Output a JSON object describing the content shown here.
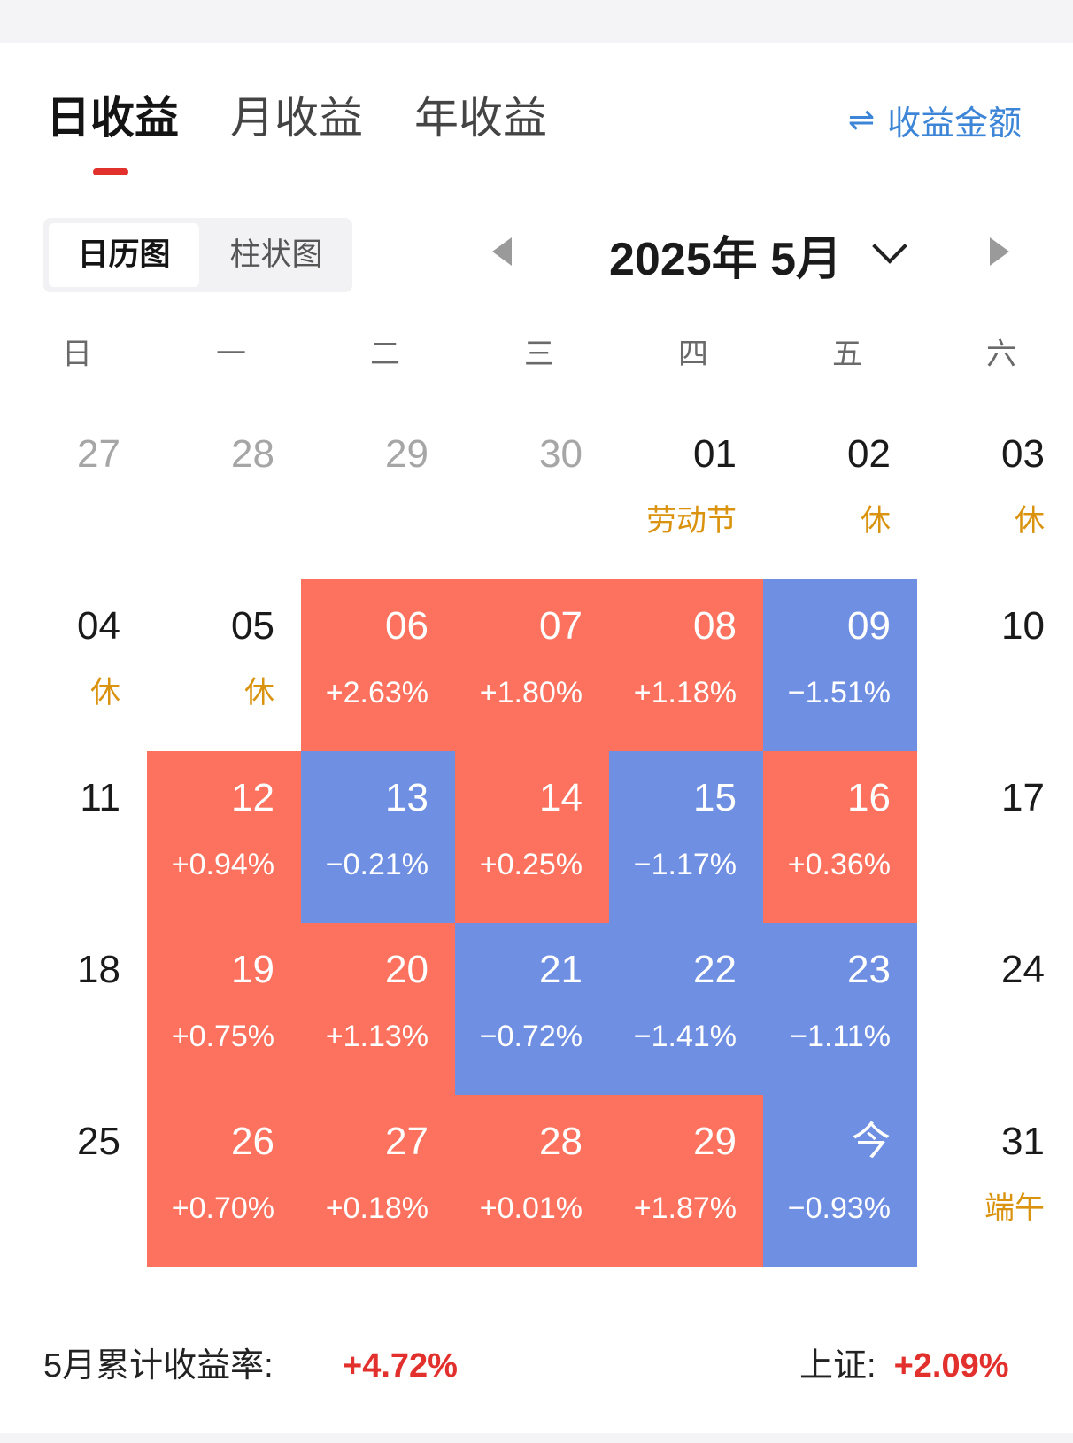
{
  "tabs": [
    {
      "label": "日收益",
      "active": true
    },
    {
      "label": "月收益",
      "active": false
    },
    {
      "label": "年收益",
      "active": false
    }
  ],
  "toggle": {
    "icon": "swap-arrows-icon",
    "label": "收益金额"
  },
  "view_toggle": {
    "active": "日历图",
    "inactive": "柱状图"
  },
  "month_nav": {
    "label": "2025年 5月"
  },
  "weekdays": [
    "日",
    "一",
    "二",
    "三",
    "四",
    "五",
    "六"
  ],
  "colors": {
    "up": "#fd725e",
    "down": "#6f8fe3",
    "holiday": "#d9930f",
    "accent": "#e2302d",
    "link": "#3d85d6"
  },
  "calendar": [
    [
      {
        "day": "27",
        "sub": "",
        "type": "other"
      },
      {
        "day": "28",
        "sub": "",
        "type": "other"
      },
      {
        "day": "29",
        "sub": "",
        "type": "other"
      },
      {
        "day": "30",
        "sub": "",
        "type": "other"
      },
      {
        "day": "01",
        "sub": "劳动节",
        "type": "holiday"
      },
      {
        "day": "02",
        "sub": "休",
        "type": "holiday"
      },
      {
        "day": "03",
        "sub": "休",
        "type": "holiday"
      }
    ],
    [
      {
        "day": "04",
        "sub": "休",
        "type": "holiday"
      },
      {
        "day": "05",
        "sub": "休",
        "type": "holiday"
      },
      {
        "day": "06",
        "sub": "+2.63%",
        "type": "up"
      },
      {
        "day": "07",
        "sub": "+1.80%",
        "type": "up"
      },
      {
        "day": "08",
        "sub": "+1.18%",
        "type": "up"
      },
      {
        "day": "09",
        "sub": "−1.51%",
        "type": "down"
      },
      {
        "day": "10",
        "sub": "",
        "type": "plain"
      }
    ],
    [
      {
        "day": "11",
        "sub": "",
        "type": "plain"
      },
      {
        "day": "12",
        "sub": "+0.94%",
        "type": "up"
      },
      {
        "day": "13",
        "sub": "−0.21%",
        "type": "down"
      },
      {
        "day": "14",
        "sub": "+0.25%",
        "type": "up"
      },
      {
        "day": "15",
        "sub": "−1.17%",
        "type": "down"
      },
      {
        "day": "16",
        "sub": "+0.36%",
        "type": "up"
      },
      {
        "day": "17",
        "sub": "",
        "type": "plain"
      }
    ],
    [
      {
        "day": "18",
        "sub": "",
        "type": "plain"
      },
      {
        "day": "19",
        "sub": "+0.75%",
        "type": "up"
      },
      {
        "day": "20",
        "sub": "+1.13%",
        "type": "up"
      },
      {
        "day": "21",
        "sub": "−0.72%",
        "type": "down"
      },
      {
        "day": "22",
        "sub": "−1.41%",
        "type": "down"
      },
      {
        "day": "23",
        "sub": "−1.11%",
        "type": "down"
      },
      {
        "day": "24",
        "sub": "",
        "type": "plain"
      }
    ],
    [
      {
        "day": "25",
        "sub": "",
        "type": "plain"
      },
      {
        "day": "26",
        "sub": "+0.70%",
        "type": "up"
      },
      {
        "day": "27",
        "sub": "+0.18%",
        "type": "up"
      },
      {
        "day": "28",
        "sub": "+0.01%",
        "type": "up"
      },
      {
        "day": "29",
        "sub": "+1.87%",
        "type": "up"
      },
      {
        "day": "今",
        "sub": "−0.93%",
        "type": "down"
      },
      {
        "day": "31",
        "sub": "端午",
        "type": "holiday"
      }
    ]
  ],
  "summary": {
    "monthly_label": "5月累计收益率:",
    "monthly_value": "+4.72%",
    "index_label": "上证:",
    "index_value": "+2.09%"
  }
}
